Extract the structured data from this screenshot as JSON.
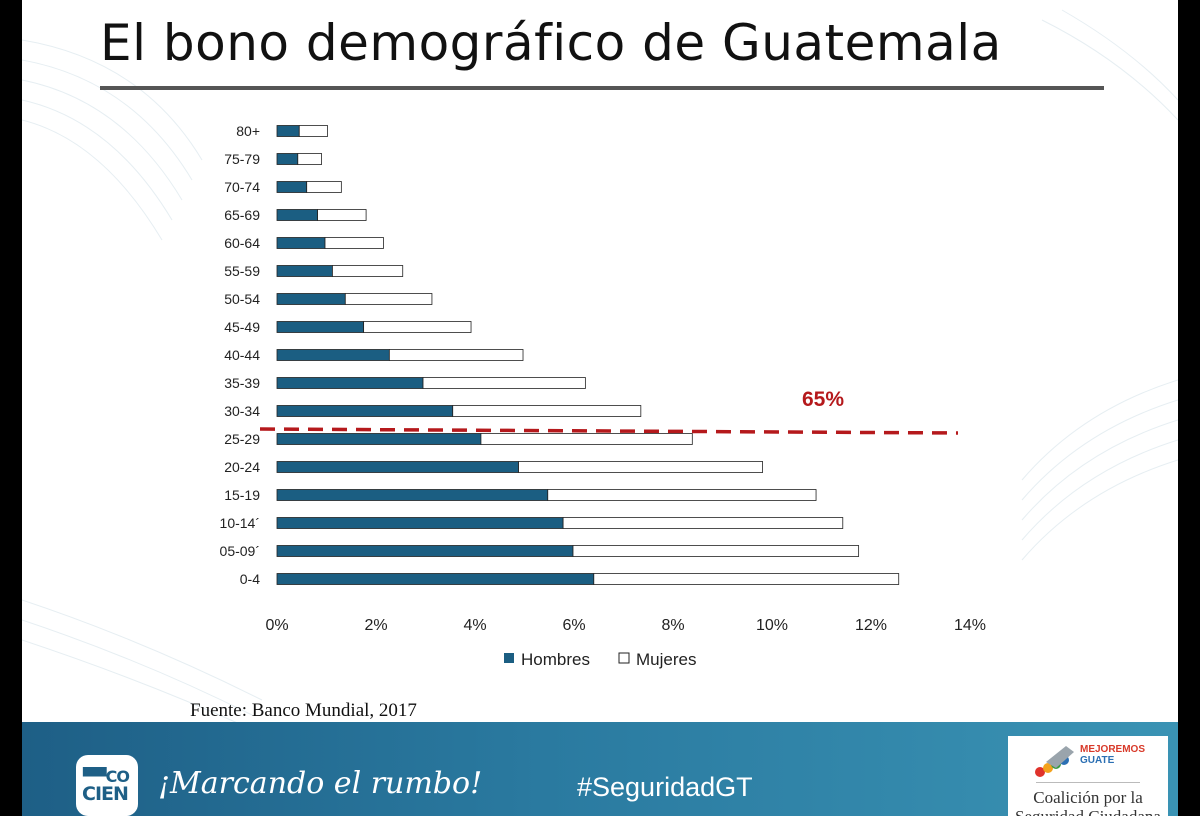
{
  "title": "El bono demográfico de Guatemala",
  "source": "Fuente: Banco Mundial, 2017",
  "footer": {
    "logo_top": "▀▀CO",
    "logo_bottom": "CIEN",
    "slogan": "¡Marcando el rumbo!",
    "hashtag": "#SeguridadGT",
    "partner_brand_line1": "MEJOREMOS",
    "partner_brand_line2": "GUATE",
    "partner_name_line1": "Coalición por la",
    "partner_name_line2": "Seguridad Ciudadana"
  },
  "colors": {
    "hombres": "#1b5e82",
    "mujeres": "#ffffff",
    "annotation": "#b5191c",
    "footer": "#2a7aa0"
  },
  "chart_data": {
    "type": "bar",
    "orientation": "horizontal",
    "stacked": true,
    "categories": [
      "80+",
      "75-79",
      "70-74",
      "65-69",
      "60-64",
      "55-59",
      "50-54",
      "45-49",
      "40-44",
      "35-39",
      "30-34",
      "25-29",
      "20-24",
      "15-19",
      "10-14´",
      "05-09´",
      "0-4"
    ],
    "series": [
      {
        "name": "Hombres",
        "values": [
          0.45,
          0.42,
          0.6,
          0.82,
          0.97,
          1.12,
          1.38,
          1.75,
          2.27,
          2.95,
          3.55,
          4.12,
          4.88,
          5.47,
          5.78,
          5.98,
          6.4
        ]
      },
      {
        "name": "Mujeres",
        "values": [
          0.57,
          0.48,
          0.7,
          0.98,
          1.18,
          1.42,
          1.75,
          2.17,
          2.7,
          3.28,
          3.8,
          4.27,
          4.93,
          5.42,
          5.65,
          5.77,
          6.16
        ]
      }
    ],
    "xlim": [
      0,
      14
    ],
    "xticks": [
      "0%",
      "2%",
      "4%",
      "6%",
      "8%",
      "10%",
      "12%",
      "14%"
    ],
    "legend": [
      "Hombres",
      "Mujeres"
    ],
    "legend_position": "bottom",
    "annotation": {
      "text": "65%",
      "line": "dashed",
      "between": [
        "30-34",
        "25-29"
      ]
    }
  }
}
